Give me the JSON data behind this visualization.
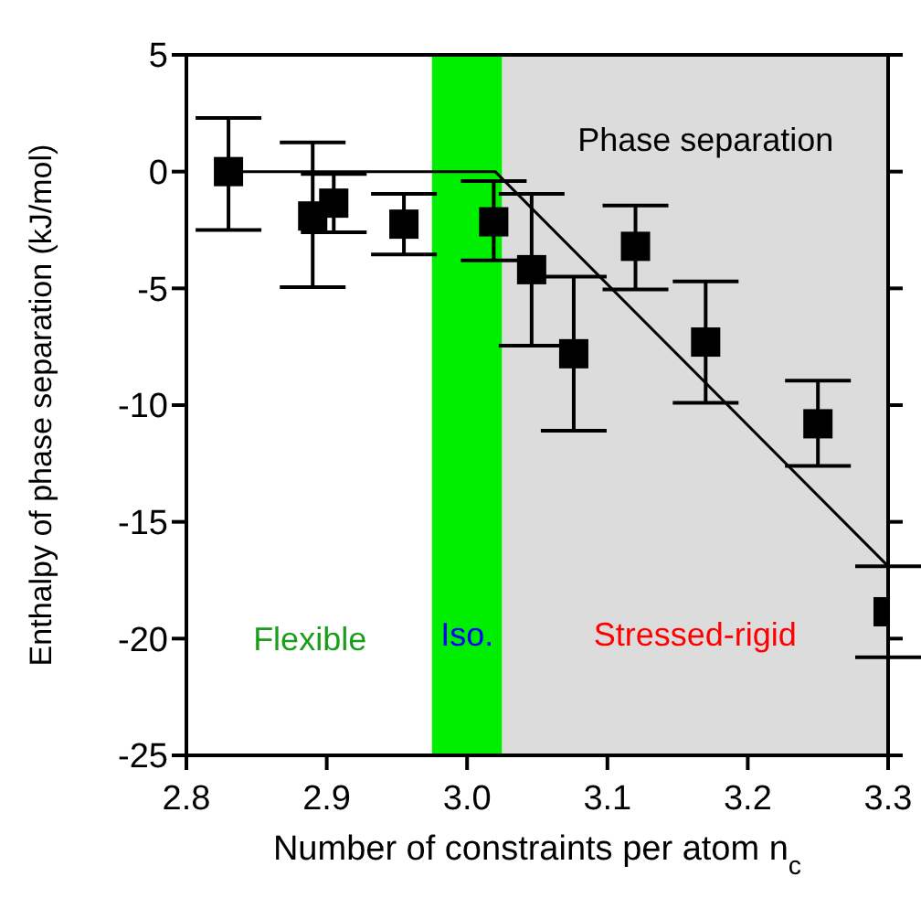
{
  "chart_data": {
    "type": "scatter",
    "xlabel": "Number of constraints per atom n$_{c}$",
    "ylabel": "Enthalpy of phase separation (kJ/mol)",
    "x": [
      2.83,
      2.89,
      2.905,
      2.955,
      3.019,
      3.046,
      3.076,
      3.12,
      3.17,
      3.25,
      3.3
    ],
    "series": [
      {
        "color": "#000000",
        "marker": "square",
        "values": [
          0,
          -1.9,
          -1.35,
          -2.25,
          -2.15,
          -4.2,
          -7.8,
          -3.2,
          -7.3,
          -10.8,
          -18.85
        ],
        "errors": [
          [
            -2.5,
            2.3
          ],
          [
            -4.95,
            1.25
          ],
          [
            -2.6,
            -0.1
          ],
          [
            -3.55,
            -0.95
          ],
          [
            -3.8,
            -0.4
          ],
          [
            -7.45,
            -0.95
          ],
          [
            -11.1,
            -4.5
          ],
          [
            -5.05,
            -1.45
          ],
          [
            -9.9,
            -4.7
          ],
          [
            -12.6,
            -8.95
          ],
          [
            -20.8,
            -16.9
          ]
        ]
      },
      {
        "type": "line",
        "color": "#000000",
        "x": [
          2.83,
          3.02,
          3.3
        ],
        "values": [
          0,
          0,
          -16.9
        ]
      }
    ],
    "bands": [
      {
        "axis": "x",
        "from": 2.975,
        "to": 3.025,
        "label": "Iso.",
        "color": "#00ee00"
      },
      {
        "axis": "x",
        "from": 3.025,
        "to": 3.3,
        "label": "Stressed-rigid",
        "color": "#dcdcdc"
      }
    ],
    "annotations": [
      "Flexible",
      "Phase separation"
    ],
    "xlim": [
      2.8,
      3.3
    ],
    "xticks": [
      {
        "value": 2.8,
        "label": "2.8"
      },
      {
        "value": 2.9,
        "label": "2.9"
      },
      {
        "value": 3.0,
        "label": "3.0"
      },
      {
        "value": 3.1,
        "label": "3.1"
      },
      {
        "value": 3.2,
        "label": "3.2"
      },
      {
        "value": 3.3,
        "label": "3.3"
      }
    ],
    "ylim": [
      -25,
      5
    ],
    "yticks": [
      -25,
      -20,
      -15,
      -10,
      -5,
      0,
      5
    ],
    "grid": false,
    "legend": false
  }
}
